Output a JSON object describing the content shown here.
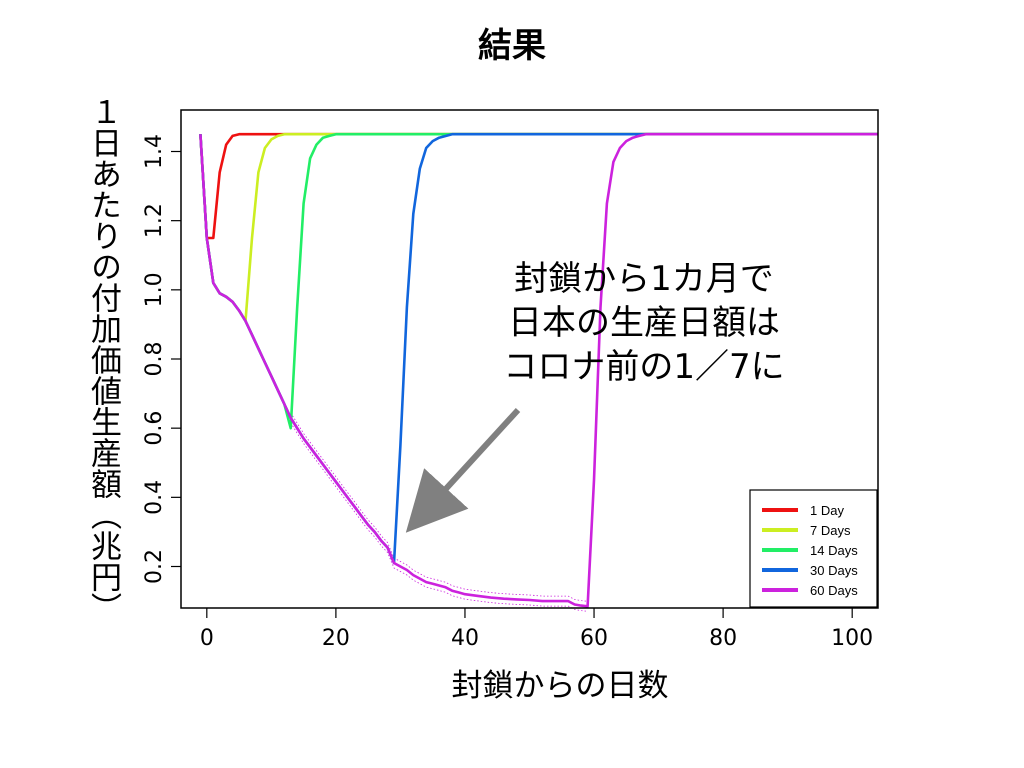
{
  "title": "結果",
  "ylabel": "１日あたりの付加価値生産額（兆円）",
  "xlabel": "封鎖からの日数",
  "annotation": [
    "封鎖から1カ月で",
    "日本の生産日額は",
    "コロナ前の1／7に"
  ],
  "arrow_color": "#808080",
  "chart_data": {
    "type": "line",
    "xlim": [
      -4,
      104
    ],
    "ylim": [
      0.08,
      1.52
    ],
    "xticks": [
      0,
      20,
      40,
      60,
      80,
      100
    ],
    "yticks": [
      0.2,
      0.4,
      0.6,
      0.8,
      1.0,
      1.2,
      1.4
    ],
    "ytick_labels": [
      "0.2",
      "0.4",
      "0.6",
      "0.8",
      "1.0",
      "1.2",
      "1.4"
    ],
    "legend_position": "bottom-right",
    "baseline": {
      "x": [
        -1,
        0,
        1,
        2,
        3,
        4,
        5,
        6,
        7,
        8,
        9,
        10,
        11,
        12,
        13,
        14,
        15,
        16,
        17,
        18,
        19,
        20,
        21,
        22,
        23,
        24,
        25,
        26,
        27,
        28,
        29,
        30,
        31,
        32,
        33,
        34,
        35,
        36,
        37,
        38,
        39,
        40,
        42,
        44,
        46,
        48,
        50,
        52,
        54,
        56,
        57,
        58,
        59
      ],
      "y": [
        1.45,
        1.15,
        1.02,
        0.99,
        0.98,
        0.965,
        0.94,
        0.91,
        0.87,
        0.83,
        0.79,
        0.75,
        0.71,
        0.67,
        0.63,
        0.6,
        0.57,
        0.545,
        0.52,
        0.495,
        0.47,
        0.445,
        0.42,
        0.395,
        0.37,
        0.345,
        0.32,
        0.3,
        0.275,
        0.255,
        0.21,
        0.2,
        0.19,
        0.175,
        0.165,
        0.155,
        0.15,
        0.145,
        0.14,
        0.13,
        0.125,
        0.12,
        0.115,
        0.11,
        0.107,
        0.105,
        0.103,
        0.1,
        0.1,
        0.1,
        0.09,
        0.087,
        0.085
      ]
    },
    "series": [
      {
        "name": "1 Day",
        "color": "#ee1111",
        "closure_days": 1,
        "recovery": {
          "x": [
            1,
            2,
            3,
            4,
            5,
            6,
            10,
            104
          ],
          "y": [
            1.15,
            1.34,
            1.42,
            1.445,
            1.45,
            1.45,
            1.45,
            1.45
          ]
        }
      },
      {
        "name": "7 Days",
        "color": "#ccee22",
        "closure_days": 7,
        "recovery": {
          "x": [
            6,
            7,
            8,
            9,
            10,
            11,
            12,
            16,
            104
          ],
          "y": [
            0.91,
            1.15,
            1.34,
            1.41,
            1.435,
            1.445,
            1.45,
            1.45,
            1.45
          ]
        }
      },
      {
        "name": "14 Days",
        "color": "#22ee66",
        "closure_days": 14,
        "recovery": {
          "x": [
            13,
            14,
            15,
            16,
            17,
            18,
            19,
            20,
            24,
            104
          ],
          "y": [
            0.6,
            0.95,
            1.25,
            1.38,
            1.42,
            1.44,
            1.445,
            1.45,
            1.45,
            1.45
          ]
        }
      },
      {
        "name": "30 Days",
        "color": "#1166dd",
        "closure_days": 30,
        "recovery": {
          "x": [
            29,
            30,
            31,
            32,
            33,
            34,
            35,
            36,
            38,
            42,
            104
          ],
          "y": [
            0.21,
            0.55,
            0.95,
            1.22,
            1.35,
            1.41,
            1.43,
            1.44,
            1.45,
            1.45,
            1.45
          ]
        }
      },
      {
        "name": "60 Days",
        "color": "#cc22dd",
        "closure_days": 60,
        "recovery": {
          "x": [
            59,
            60,
            61,
            62,
            63,
            64,
            65,
            66,
            67,
            68,
            70,
            74,
            104
          ],
          "y": [
            0.085,
            0.45,
            0.95,
            1.25,
            1.37,
            1.41,
            1.43,
            1.44,
            1.445,
            1.45,
            1.45,
            1.45,
            1.45
          ]
        }
      }
    ]
  }
}
